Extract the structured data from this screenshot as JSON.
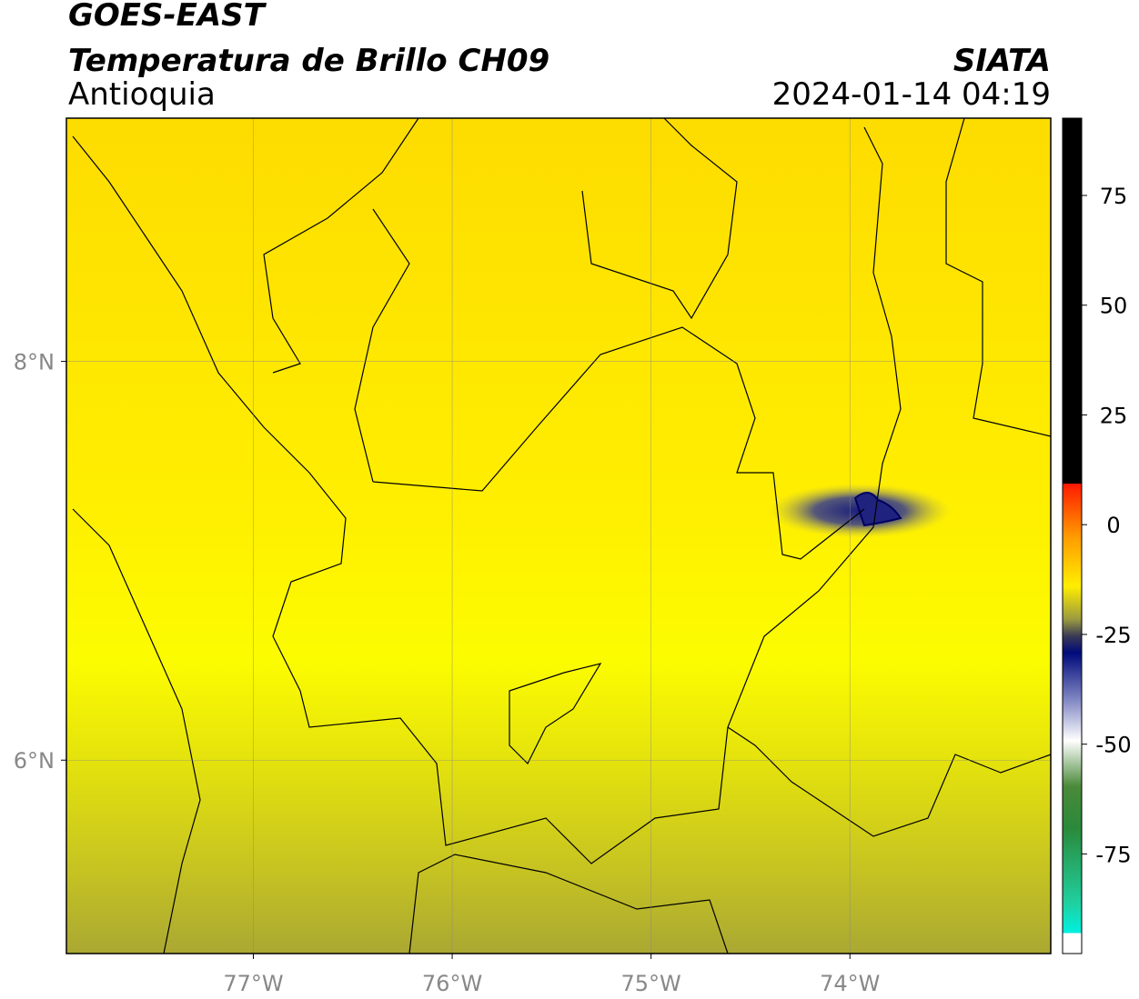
{
  "header": {
    "title": "GOES-EAST",
    "subtitle": "Temperatura de Brillo CH09",
    "region": "Antioquia",
    "source": "SIATA",
    "datetime": "2024-01-14 04:19"
  },
  "map": {
    "lonlim": [
      -77.94,
      -72.99
    ],
    "latlim": [
      5.03,
      9.22
    ],
    "grid": true,
    "lonticks": [
      {
        "value": -77,
        "label": "77°W"
      },
      {
        "value": -76,
        "label": "76°W"
      },
      {
        "value": -75,
        "label": "75°W"
      },
      {
        "value": -74,
        "label": "74°W"
      }
    ],
    "latticks": [
      {
        "value": 8,
        "label": "8°N"
      },
      {
        "value": 6,
        "label": "6°N"
      }
    ]
  },
  "colorbar": {
    "lim": [
      -97.7,
      92.6
    ],
    "ticks": [
      75,
      50,
      25,
      0,
      -25,
      -50,
      -75
    ]
  }
}
